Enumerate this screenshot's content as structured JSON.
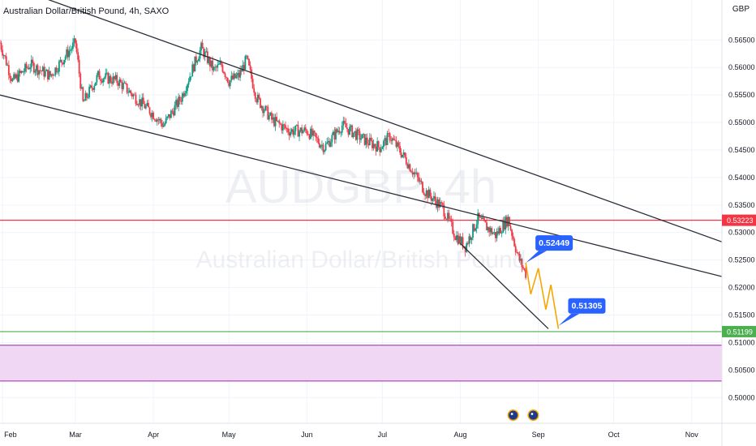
{
  "header": {
    "title": "Australian Dollar/British Pound, 4h, SAXO",
    "currency": "GBP"
  },
  "watermark": {
    "symbol": "AUDGBP, 4h",
    "name": "Australian Dollar/British Pound"
  },
  "chart_data": {
    "type": "candlestick",
    "ylim": [
      0.4965,
      0.5705
    ],
    "y_ticks": [
      0.565,
      0.56,
      0.555,
      0.55,
      0.545,
      0.54,
      0.535,
      0.53,
      0.525,
      0.52,
      0.515,
      0.51,
      0.505,
      0.5
    ],
    "y_tick_labels": [
      "0.56500",
      "0.56000",
      "0.55500",
      "0.55000",
      "0.54500",
      "0.54000",
      "0.53500",
      "0.53000",
      "0.52500",
      "0.52000",
      "0.51500",
      "0.51000",
      "0.50500",
      "0.50000"
    ],
    "x_range": [
      "2024-01-31",
      "2024-11-13"
    ],
    "x_ticks": [
      {
        "label": "Feb",
        "date": "2024-02-01"
      },
      {
        "label": "Mar",
        "date": "2024-03-01"
      },
      {
        "label": "Apr",
        "date": "2024-04-01"
      },
      {
        "label": "May",
        "date": "2024-05-01"
      },
      {
        "label": "Jun",
        "date": "2024-06-01"
      },
      {
        "label": "Jul",
        "date": "2024-07-01"
      },
      {
        "label": "Aug",
        "date": "2024-08-01"
      },
      {
        "label": "Sep",
        "date": "2024-09-01"
      },
      {
        "label": "Oct",
        "date": "2024-10-01"
      },
      {
        "label": "Nov",
        "date": "2024-11-01"
      }
    ],
    "price_path": [
      {
        "date": "2024-01-31",
        "price": 0.5645
      },
      {
        "date": "2024-02-05",
        "price": 0.5575
      },
      {
        "date": "2024-02-12",
        "price": 0.5605
      },
      {
        "date": "2024-02-20",
        "price": 0.5585
      },
      {
        "date": "2024-03-01",
        "price": 0.5645
      },
      {
        "date": "2024-03-04",
        "price": 0.5535
      },
      {
        "date": "2024-03-10",
        "price": 0.5585
      },
      {
        "date": "2024-03-18",
        "price": 0.5575
      },
      {
        "date": "2024-03-25",
        "price": 0.5545
      },
      {
        "date": "2024-04-01",
        "price": 0.5515
      },
      {
        "date": "2024-04-05",
        "price": 0.5495
      },
      {
        "date": "2024-04-12",
        "price": 0.5545
      },
      {
        "date": "2024-04-18",
        "price": 0.5615
      },
      {
        "date": "2024-04-20",
        "price": 0.5635
      },
      {
        "date": "2024-04-25",
        "price": 0.5595
      },
      {
        "date": "2024-04-28",
        "price": 0.5605
      },
      {
        "date": "2024-05-01",
        "price": 0.5575
      },
      {
        "date": "2024-05-05",
        "price": 0.5585
      },
      {
        "date": "2024-05-08",
        "price": 0.5615
      },
      {
        "date": "2024-05-12",
        "price": 0.5545
      },
      {
        "date": "2024-05-18",
        "price": 0.5505
      },
      {
        "date": "2024-05-25",
        "price": 0.5485
      },
      {
        "date": "2024-06-01",
        "price": 0.5485
      },
      {
        "date": "2024-06-08",
        "price": 0.5455
      },
      {
        "date": "2024-06-15",
        "price": 0.5495
      },
      {
        "date": "2024-06-25",
        "price": 0.5465
      },
      {
        "date": "2024-06-30",
        "price": 0.5455
      },
      {
        "date": "2024-07-04",
        "price": 0.5475
      },
      {
        "date": "2024-07-10",
        "price": 0.5435
      },
      {
        "date": "2024-07-18",
        "price": 0.5375
      },
      {
        "date": "2024-07-25",
        "price": 0.5345
      },
      {
        "date": "2024-07-30",
        "price": 0.5295
      },
      {
        "date": "2024-08-03",
        "price": 0.5275
      },
      {
        "date": "2024-08-08",
        "price": 0.5325
      },
      {
        "date": "2024-08-15",
        "price": 0.5295
      },
      {
        "date": "2024-08-20",
        "price": 0.5325
      },
      {
        "date": "2024-08-24",
        "price": 0.5255
      },
      {
        "date": "2024-08-27",
        "price": 0.5225
      }
    ],
    "trendlines": [
      {
        "name": "upper-channel",
        "start": {
          "date": "2024-01-31",
          "price": 0.5755
        },
        "end": {
          "date": "2024-11-13",
          "price": 0.5283
        }
      },
      {
        "name": "lower-channel",
        "start": {
          "date": "2024-01-31",
          "price": 0.555
        },
        "end": {
          "date": "2024-11-13",
          "price": 0.522
        }
      },
      {
        "name": "wedge-support",
        "start": {
          "date": "2024-08-01",
          "price": 0.528
        },
        "end": {
          "date": "2024-09-05",
          "price": 0.5125
        }
      }
    ],
    "horizontal_levels": [
      {
        "price": 0.53223,
        "label": "0.53223",
        "color": "#f23645"
      },
      {
        "price": 0.51199,
        "label": "0.51199",
        "color": "#4caf50"
      }
    ],
    "zone": {
      "top": 0.5095,
      "bottom": 0.503,
      "fill": "#f0d8f4",
      "border": "#9c27b0"
    },
    "projection": {
      "color": "#f7a600",
      "points": [
        {
          "date": "2024-08-27",
          "price": 0.5245
        },
        {
          "date": "2024-08-29",
          "price": 0.5188
        },
        {
          "date": "2024-09-01",
          "price": 0.5235
        },
        {
          "date": "2024-09-04",
          "price": 0.516
        },
        {
          "date": "2024-09-06",
          "price": 0.5205
        },
        {
          "date": "2024-09-09",
          "price": 0.5125
        }
      ]
    },
    "callouts": [
      {
        "label": "0.52449",
        "date": "2024-08-27",
        "price": 0.52449
      },
      {
        "label": "0.51305",
        "date": "2024-09-09",
        "price": 0.51305
      }
    ],
    "event_markers": [
      {
        "date": "2024-08-22"
      },
      {
        "date": "2024-08-30"
      }
    ],
    "colors": {
      "up": "#089981",
      "down": "#f23645",
      "grid": "#f0f3fa",
      "trendline": "#2a2e39",
      "callout": "#2962ff"
    }
  }
}
